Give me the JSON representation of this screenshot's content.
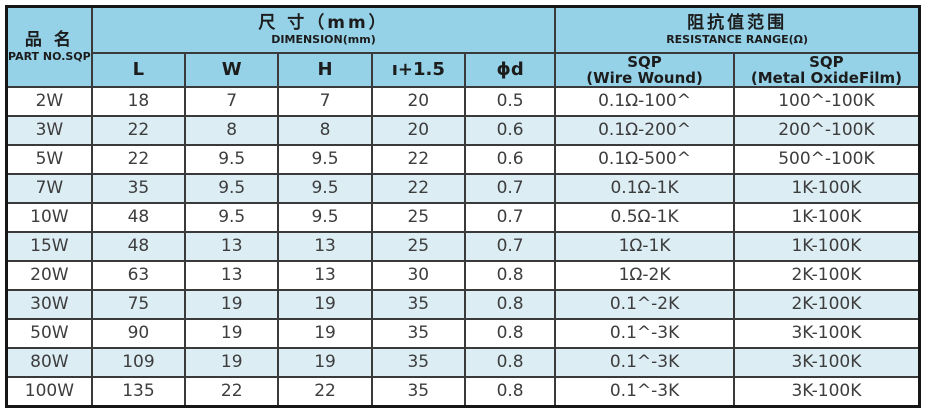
{
  "colors": {
    "header_bg": "#95d2e8",
    "alt_row_bg": "#dcedf4",
    "border": "#3a3a3a",
    "outer_border": "#161616",
    "text": "#3d3d3d"
  },
  "table": {
    "part_header": {
      "zh": "品 名",
      "en": "PART NO.SQP"
    },
    "dimension_header": {
      "zh": "尺 寸（mm）",
      "en": "DIMENSION(mm)"
    },
    "resistance_header": {
      "zh": "阻抗值范围",
      "en": "RESISTANCE RANGE(Ω)"
    },
    "dim_cols": [
      "L",
      "W",
      "H",
      "ı+1.5",
      "ϕd"
    ],
    "res_cols": [
      {
        "line1": "SQP",
        "line2": "(Wire Wound)"
      },
      {
        "line1": "SQP",
        "line2": "(Metal OxideFilm)"
      }
    ]
  },
  "chart_data": {
    "type": "table",
    "columns": [
      "PART NO.SQP",
      "L",
      "W",
      "H",
      "ı+1.5",
      "ϕd",
      "SQP (Wire Wound)",
      "SQP (Metal OxideFilm)"
    ],
    "rows": [
      [
        "2W",
        "18",
        "7",
        "7",
        "20",
        "0.5",
        "0.1Ω-100^",
        "100^-100K"
      ],
      [
        "3W",
        "22",
        "8",
        "8",
        "20",
        "0.6",
        "0.1Ω-200^",
        "200^-100K"
      ],
      [
        "5W",
        "22",
        "9.5",
        "9.5",
        "22",
        "0.6",
        "0.1Ω-500^",
        "500^-100K"
      ],
      [
        "7W",
        "35",
        "9.5",
        "9.5",
        "22",
        "0.7",
        "0.1Ω-1K",
        "1K-100K"
      ],
      [
        "10W",
        "48",
        "9.5",
        "9.5",
        "25",
        "0.7",
        "0.5Ω-1K",
        "1K-100K"
      ],
      [
        "15W",
        "48",
        "13",
        "13",
        "25",
        "0.7",
        "1Ω-1K",
        "1K-100K"
      ],
      [
        "20W",
        "63",
        "13",
        "13",
        "30",
        "0.8",
        "1Ω-2K",
        "2K-100K"
      ],
      [
        "30W",
        "75",
        "19",
        "19",
        "35",
        "0.8",
        "0.1^-2K",
        "2K-100K"
      ],
      [
        "50W",
        "90",
        "19",
        "19",
        "35",
        "0.8",
        "0.1^-3K",
        "3K-100K"
      ],
      [
        "80W",
        "109",
        "19",
        "19",
        "35",
        "0.8",
        "0.1^-3K",
        "3K-100K"
      ],
      [
        "100W",
        "135",
        "22",
        "22",
        "35",
        "0.8",
        "0.1^-3K",
        "3K-100K"
      ]
    ]
  }
}
